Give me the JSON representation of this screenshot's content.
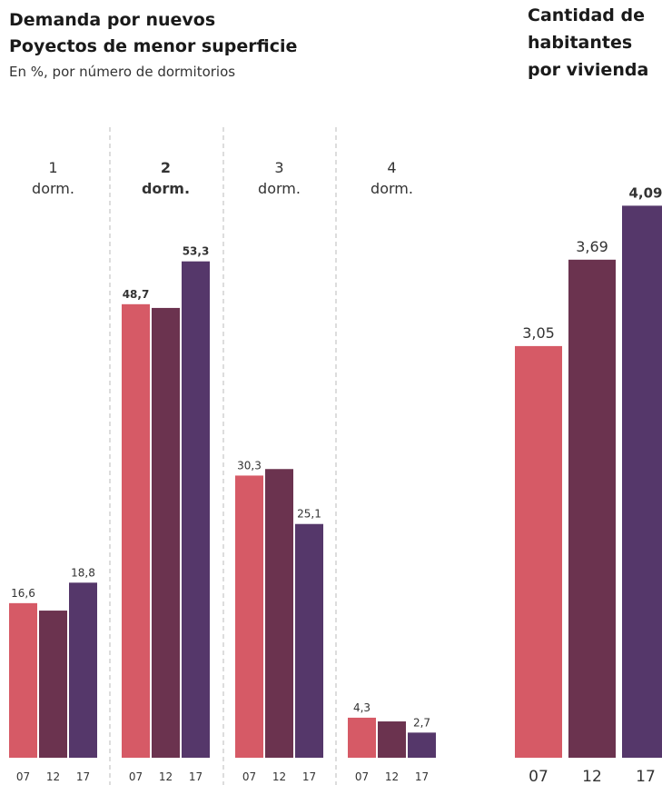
{
  "left_title_line1": "Demanda por nuevos",
  "left_title_line2": "Poyectos de menor superficie",
  "left_subtitle": "En %, por número de dormitorios",
  "right_title_line1": "Cantidad de",
  "right_title_line2": "habitantes",
  "right_title_line3": "por vivienda",
  "colors": {
    "y07": "#d65a66",
    "y12": "#6b334f",
    "y17": "#55376a",
    "divider": "#bbbbbb"
  },
  "chart_data": [
    {
      "type": "bar",
      "title": "Demanda por nuevos Poyectos de menor superficie",
      "subtitle": "En %, por número de dormitorios",
      "x": [
        "07",
        "12",
        "17"
      ],
      "groups": [
        {
          "label_line1": "1",
          "label_line2": "dorm.",
          "bold": false,
          "values": [
            16.6,
            15.8,
            18.8
          ],
          "labels": [
            "16,6",
            "",
            "18,8"
          ]
        },
        {
          "label_line1": "2",
          "label_line2": "dorm.",
          "bold": true,
          "values": [
            48.7,
            48.3,
            53.3
          ],
          "labels": [
            "48,7",
            "",
            "53,3"
          ]
        },
        {
          "label_line1": "3",
          "label_line2": "dorm.",
          "bold": false,
          "values": [
            30.3,
            31.0,
            25.1
          ],
          "labels": [
            "30,3",
            "",
            "25,1"
          ]
        },
        {
          "label_line1": "4",
          "label_line2": "dorm.",
          "bold": false,
          "values": [
            4.3,
            3.9,
            2.7
          ],
          "labels": [
            "4,3",
            "",
            "2,7"
          ]
        }
      ]
    },
    {
      "type": "bar",
      "title": "Cantidad de habitantes por vivienda",
      "categories": [
        "07",
        "12",
        "17"
      ],
      "values": [
        3.05,
        3.69,
        4.09
      ],
      "labels": [
        "3,05",
        "3,69",
        "4,09"
      ]
    }
  ]
}
